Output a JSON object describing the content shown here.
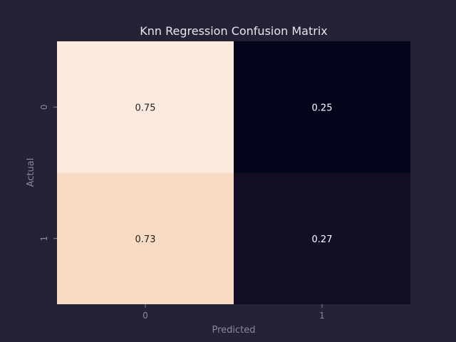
{
  "chart_data": {
    "type": "heatmap",
    "title": "Knn Regression Confusion Matrix",
    "xlabel": "Predicted",
    "ylabel": "Actual",
    "x_categories": [
      "0",
      "1"
    ],
    "y_categories": [
      "0",
      "1"
    ],
    "values": [
      [
        0.75,
        0.25
      ],
      [
        0.73,
        0.27
      ]
    ],
    "value_labels": [
      [
        "0.75",
        "0.25"
      ],
      [
        "0.73",
        "0.27"
      ]
    ],
    "cell_colors": [
      [
        "#fbeadd",
        "#03051a"
      ],
      [
        "#f7dbc5",
        "#120d22"
      ]
    ],
    "label_colors": [
      [
        "#222222",
        "#ffffff"
      ],
      [
        "#222222",
        "#ffffff"
      ]
    ],
    "colorbar": false
  }
}
